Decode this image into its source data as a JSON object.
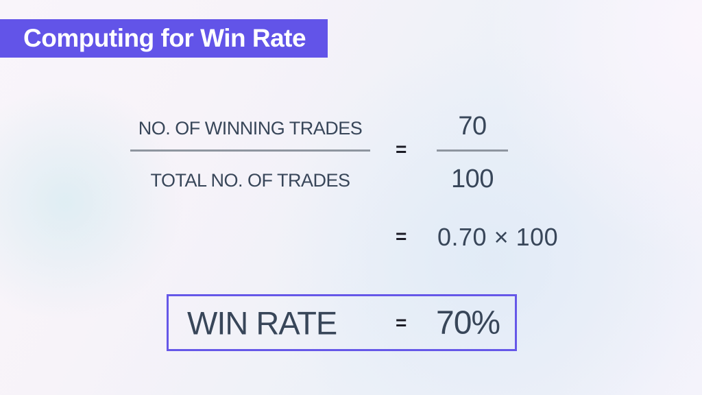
{
  "header": {
    "title": "Computing for Win Rate"
  },
  "formula": {
    "left_fraction": {
      "numerator": "NO. OF WINNING TRADES",
      "denominator": "TOTAL NO. OF TRADES"
    },
    "equals_1": "=",
    "right_fraction": {
      "numerator": "70",
      "denominator": "100"
    },
    "equals_2": "=",
    "expression": "0.70 × 100"
  },
  "result": {
    "label": "WIN RATE",
    "equals": "=",
    "value": "70%"
  },
  "colors": {
    "accent_purple": "#6254e8",
    "box_border_purple": "#6557e8",
    "text_dark_slate": "#384659",
    "equals_dark": "#1b1b25",
    "fraction_line_gray": "#8e959f"
  }
}
